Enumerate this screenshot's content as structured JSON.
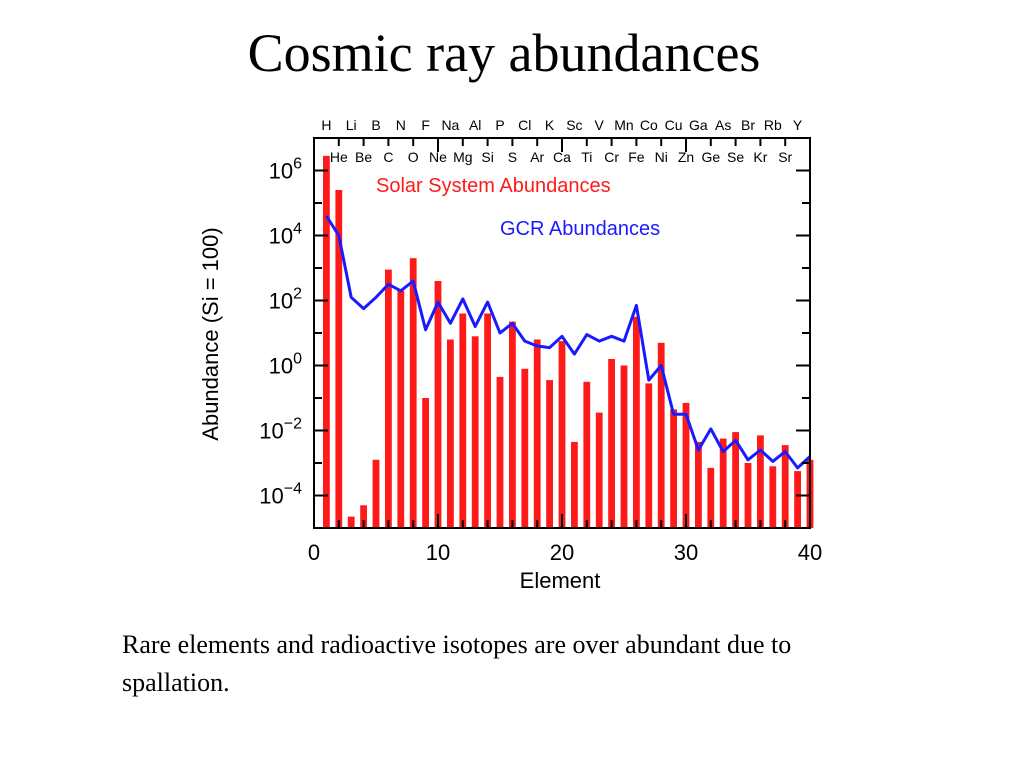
{
  "slide": {
    "title": "Cosmic ray abundances",
    "caption": "Rare elements and radioactive isotopes are over abundant due to spallation."
  },
  "colors": {
    "solar": "#ff1a1a",
    "gcr": "#1a1aff",
    "axis": "#000000"
  },
  "chart_data": {
    "type": "bar",
    "title": "",
    "xlabel": "Element",
    "ylabel": "Abundance (Si = 100)",
    "xlim": [
      0,
      40
    ],
    "ylim_log10": [
      -5,
      7
    ],
    "x_ticks": [
      0,
      10,
      20,
      30,
      40
    ],
    "y_tick_labels": [
      {
        "exp": 6,
        "base": "10",
        "sup": "6"
      },
      {
        "exp": 4,
        "base": "10",
        "sup": "4"
      },
      {
        "exp": 2,
        "base": "10",
        "sup": "2"
      },
      {
        "exp": 0,
        "base": "10",
        "sup": "0"
      },
      {
        "exp": -2,
        "base": "10",
        "sup": "−2"
      },
      {
        "exp": -4,
        "base": "10",
        "sup": "−4"
      }
    ],
    "elements_top": [
      "H",
      "Li",
      "B",
      "N",
      "F",
      "Na",
      "Al",
      "P",
      "Cl",
      "K",
      "Sc",
      "V",
      "Mn",
      "Co",
      "Cu",
      "Ga",
      "As",
      "Br",
      "Rb",
      "Y"
    ],
    "elements_bottom": [
      "He",
      "Be",
      "C",
      "O",
      "Ne",
      "Mg",
      "Si",
      "S",
      "Ar",
      "Ca",
      "Ti",
      "Cr",
      "Fe",
      "Ni",
      "Zn",
      "Ge",
      "Se",
      "Kr",
      "Sr"
    ],
    "series": [
      {
        "name": "Solar System Abundances",
        "style": "bars",
        "x": [
          1,
          2,
          3,
          4,
          5,
          6,
          7,
          8,
          9,
          10,
          11,
          12,
          13,
          14,
          15,
          16,
          17,
          18,
          19,
          20,
          21,
          22,
          23,
          24,
          25,
          26,
          27,
          28,
          29,
          30,
          31,
          32,
          33,
          34,
          35,
          36,
          37,
          38,
          39,
          40
        ],
        "log10_values": [
          6.45,
          5.4,
          -4.65,
          -4.3,
          -2.9,
          2.95,
          2.3,
          3.3,
          -1.0,
          2.6,
          0.8,
          1.6,
          0.9,
          1.6,
          -0.35,
          1.35,
          -0.1,
          0.8,
          -0.45,
          0.75,
          -2.35,
          -0.5,
          -1.45,
          0.2,
          0.0,
          1.5,
          -0.55,
          0.7,
          -1.35,
          -1.15,
          -2.35,
          -3.15,
          -2.25,
          -2.05,
          -3.0,
          -2.15,
          -3.1,
          -2.45,
          -3.25,
          -2.9
        ]
      },
      {
        "name": "GCR Abundances",
        "style": "line",
        "x": [
          1,
          2,
          3,
          4,
          5,
          6,
          7,
          8,
          9,
          10,
          11,
          12,
          13,
          14,
          15,
          16,
          17,
          18,
          19,
          20,
          21,
          22,
          23,
          24,
          25,
          26,
          27,
          28,
          29,
          30,
          31,
          32,
          33,
          34,
          35,
          36,
          37,
          38,
          39,
          40
        ],
        "log10_values": [
          4.6,
          4.0,
          2.1,
          1.75,
          2.1,
          2.5,
          2.3,
          2.6,
          1.1,
          1.95,
          1.3,
          2.05,
          1.2,
          1.95,
          1.0,
          1.3,
          0.75,
          0.6,
          0.55,
          0.9,
          0.35,
          0.95,
          0.75,
          0.9,
          0.75,
          1.85,
          -0.45,
          0.0,
          -1.5,
          -1.5,
          -2.6,
          -1.95,
          -2.65,
          -2.3,
          -2.9,
          -2.6,
          -2.95,
          -2.65,
          -3.15,
          -2.8
        ]
      }
    ],
    "legend": {
      "placement": "top-right inside plot",
      "entries": [
        "Solar System Abundances",
        "GCR Abundances"
      ]
    }
  }
}
